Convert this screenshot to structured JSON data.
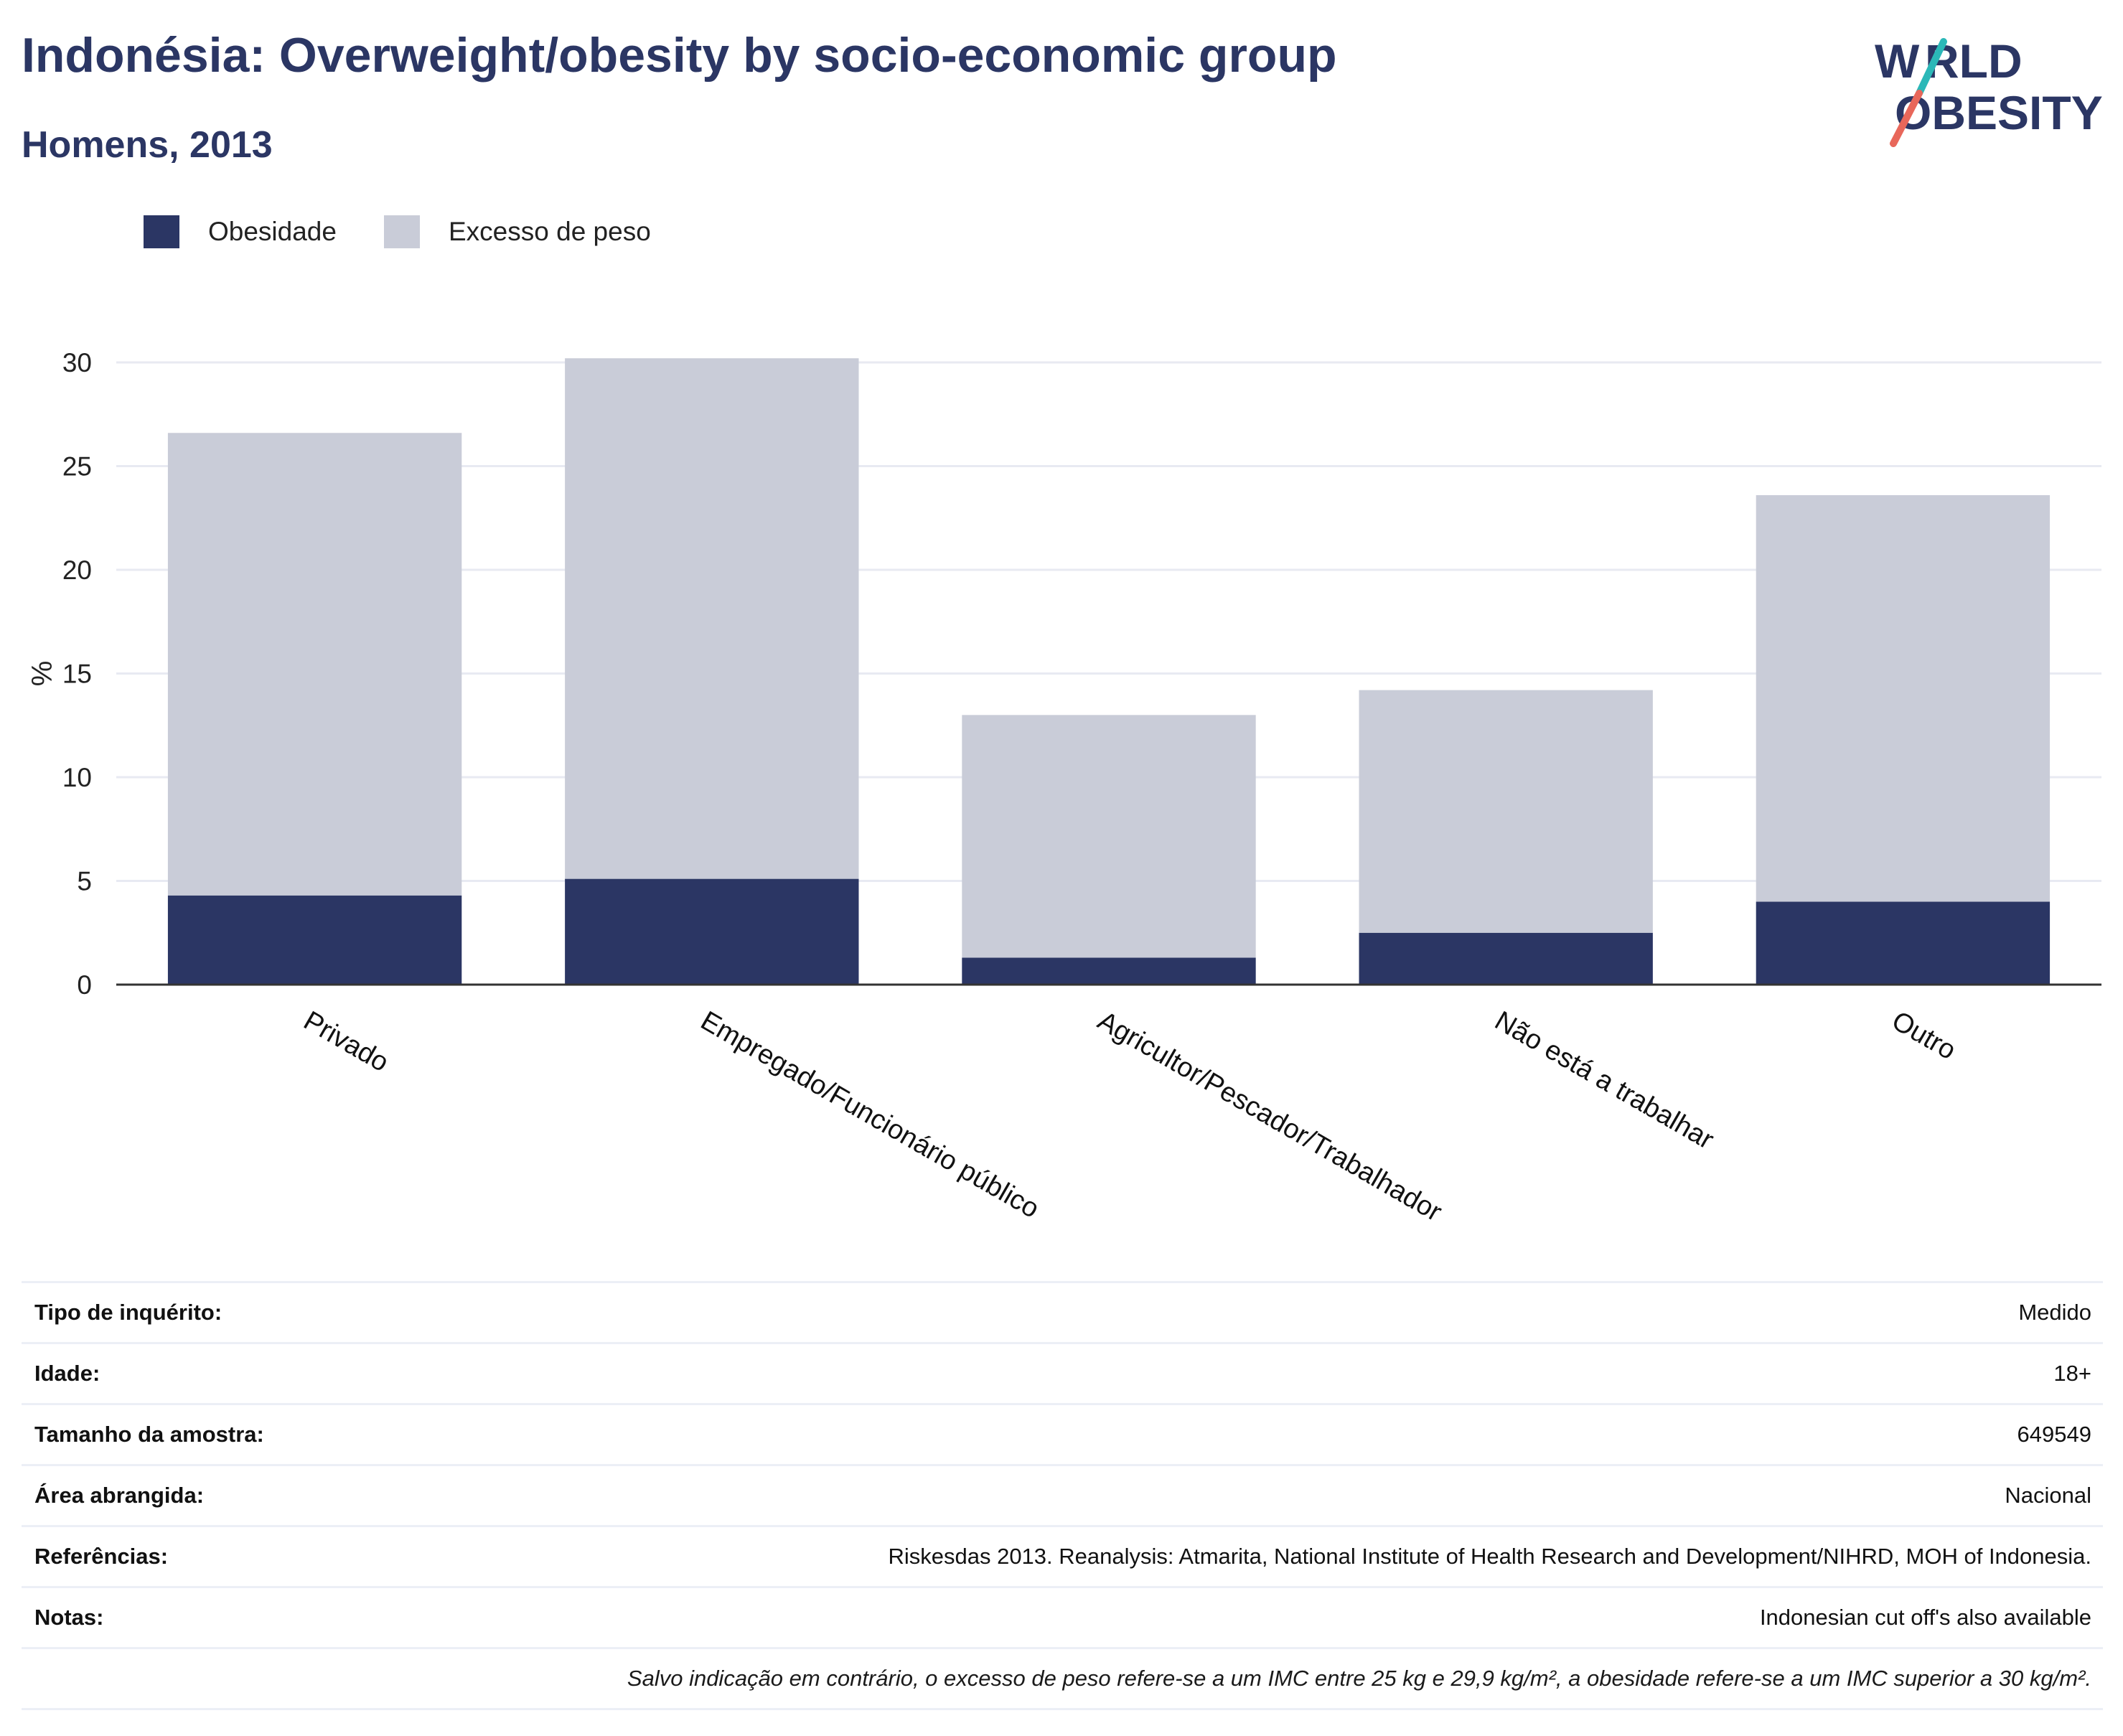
{
  "header": {
    "title": "Indonésia: Overweight/obesity by socio-economic group",
    "subtitle": "Homens, 2013",
    "logo_text": "WORLD OBESITY"
  },
  "colors": {
    "obesity": "#2b3664",
    "overweight": "#c9ccd8",
    "title": "#2b3664",
    "logo_teal": "#2bb8b8",
    "logo_coral": "#e8675a",
    "grid": "#e8eaf2",
    "axis": "#333333"
  },
  "legend": [
    {
      "label": "Obesidade",
      "color": "#2b3664"
    },
    {
      "label": "Excesso de peso",
      "color": "#c9ccd8"
    }
  ],
  "chart_data": {
    "type": "bar",
    "stacked": true,
    "categories": [
      "Privado",
      "Empregado/Funcionário público",
      "Agricultor/Pescador/Trabalhador",
      "Não está a trabalhar",
      "Outro"
    ],
    "series": [
      {
        "name": "Obesidade",
        "values": [
          4.3,
          5.1,
          1.3,
          2.5,
          4.0
        ]
      },
      {
        "name": "Excesso de peso",
        "values": [
          22.3,
          25.1,
          11.7,
          11.7,
          19.6
        ]
      }
    ],
    "ylabel": "%",
    "xlabel": "",
    "ylim": [
      0,
      30
    ],
    "yticks": [
      0,
      5,
      10,
      15,
      20,
      25,
      30
    ],
    "grid": true,
    "legend_position": "top-left"
  },
  "info_table": [
    {
      "label": "Tipo de inquérito:",
      "value": "Medido"
    },
    {
      "label": "Idade:",
      "value": "18+"
    },
    {
      "label": "Tamanho da amostra:",
      "value": "649549"
    },
    {
      "label": "Área abrangida:",
      "value": "Nacional"
    },
    {
      "label": "Referências:",
      "value": "Riskesdas 2013. Reanalysis: Atmarita, National Institute of Health Research and Development/NIHRD, MOH of Indonesia."
    },
    {
      "label": "Notas:",
      "value": "Indonesian cut off's also available"
    }
  ],
  "footnote": "Salvo indicação em contrário, o excesso de peso refere-se a um IMC entre 25 kg e 29,9 kg/m², a obesidade refere-se a um IMC superior a 30 kg/m²."
}
